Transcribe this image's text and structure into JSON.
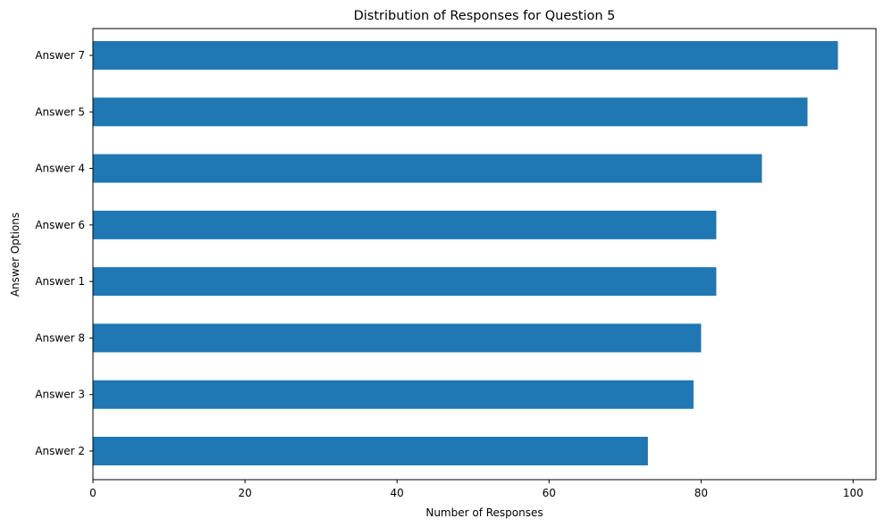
{
  "chart_data": {
    "type": "bar",
    "orientation": "horizontal",
    "title": "Distribution of Responses for Question 5",
    "xlabel": "Number of Responses",
    "ylabel": "Answer Options",
    "categories": [
      "Answer 7",
      "Answer 5",
      "Answer 4",
      "Answer 6",
      "Answer 1",
      "Answer 8",
      "Answer 3",
      "Answer 2"
    ],
    "values": [
      98,
      94,
      88,
      82,
      82,
      80,
      79,
      73
    ],
    "xlim": [
      0,
      103
    ],
    "xticks": [
      0,
      20,
      40,
      60,
      80,
      100
    ],
    "grid": false,
    "bar_color": "#1f77b4"
  }
}
